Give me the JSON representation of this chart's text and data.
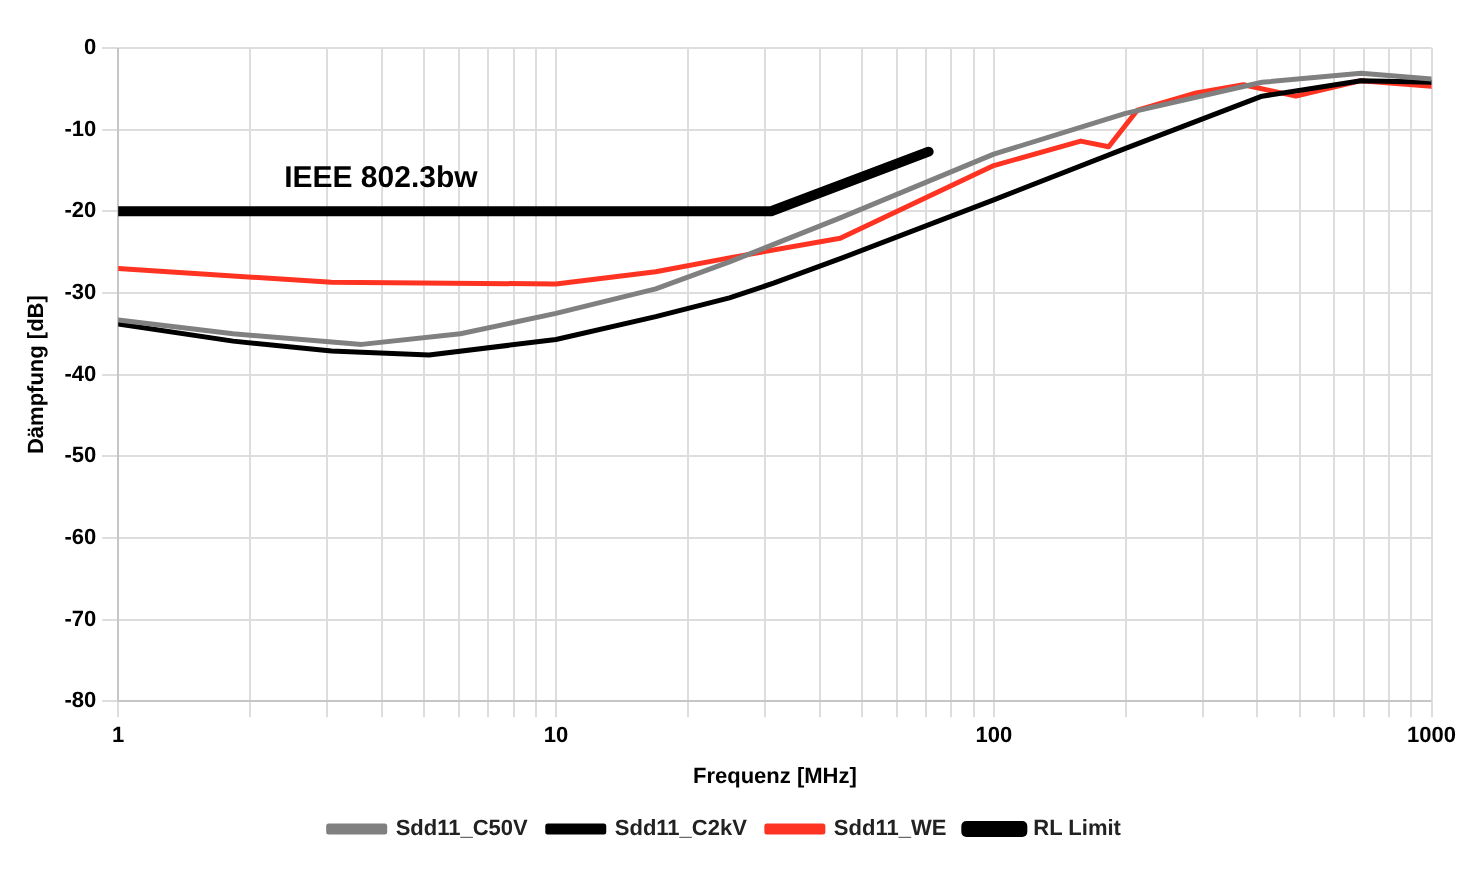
{
  "chart_data": {
    "type": "line",
    "xlabel": "Frequenz [MHz]",
    "ylabel": "Dämpfung [dB]",
    "log": "x",
    "xlim": [
      1,
      1000
    ],
    "ylim": [
      -80,
      0
    ],
    "xticks": [
      1,
      {
        "value": 2,
        "label": null
      },
      {
        "value": 3,
        "label": null
      },
      {
        "value": 4,
        "label": null
      },
      {
        "value": 5,
        "label": null
      },
      {
        "value": 6,
        "label": null
      },
      {
        "value": 7,
        "label": null
      },
      {
        "value": 8,
        "label": null
      },
      {
        "value": 9,
        "label": null
      },
      10,
      {
        "value": 20,
        "label": null
      },
      {
        "value": 30,
        "label": null
      },
      {
        "value": 40,
        "label": null
      },
      {
        "value": 50,
        "label": null
      },
      {
        "value": 60,
        "label": null
      },
      {
        "value": 70,
        "label": null
      },
      {
        "value": 80,
        "label": null
      },
      {
        "value": 90,
        "label": null
      },
      100,
      {
        "value": 200,
        "label": null
      },
      {
        "value": 300,
        "label": null
      },
      {
        "value": 400,
        "label": null
      },
      {
        "value": 500,
        "label": null
      },
      {
        "value": 600,
        "label": null
      },
      {
        "value": 700,
        "label": null
      },
      {
        "value": 800,
        "label": null
      },
      {
        "value": 900,
        "label": null
      },
      1000
    ],
    "yticks": [
      -80,
      -70,
      -60,
      -50,
      -40,
      -30,
      -20,
      -10,
      0
    ],
    "grid": true,
    "legend": "bottom",
    "marker": "none",
    "annotations": [
      "IEEE 802.3bw"
    ],
    "series": [
      {
        "name": "Sdd11_C50V",
        "color": "#808080",
        "x": [
          1,
          1.83,
          3.6,
          6.05,
          10,
          16.9,
          24.9,
          44.6,
          100,
          200,
          410,
          690,
          1000
        ],
        "values": [
          -33.3,
          -35,
          -36.3,
          -35,
          -32.5,
          -29.5,
          -26.2,
          -20.8,
          -13,
          -8,
          -4.2,
          -3.1,
          -3.8
        ]
      },
      {
        "name": "Sdd11_C2kV",
        "color": "#000000",
        "x": [
          1,
          1.83,
          3.07,
          5.13,
          10,
          16.9,
          24.9,
          31.4,
          44.6,
          100,
          200,
          410,
          690,
          1000
        ],
        "values": [
          -33.8,
          -35.9,
          -37.1,
          -37.6,
          -35.7,
          -32.9,
          -30.6,
          -28.8,
          -25.8,
          -18.6,
          -12.3,
          -5.9,
          -4,
          -4.2
        ]
      },
      {
        "name": "Sdd11_WE",
        "color": "#ff3322",
        "x": [
          1,
          3.07,
          10,
          16.9,
          24.9,
          44.6,
          100,
          158,
          183,
          213,
          290,
          372,
          490,
          690,
          1000
        ],
        "values": [
          -27,
          -28.7,
          -28.9,
          -27.4,
          -25.7,
          -23.3,
          -14.4,
          -11.4,
          -12.1,
          -7.6,
          -5.5,
          -4.5,
          -5.9,
          -4,
          -4.7
        ]
      },
      {
        "name": "RL Limit",
        "color": "#000000",
        "x": [
          1,
          31,
          71
        ],
        "values": [
          -20,
          -20,
          -12.7
        ]
      }
    ]
  }
}
